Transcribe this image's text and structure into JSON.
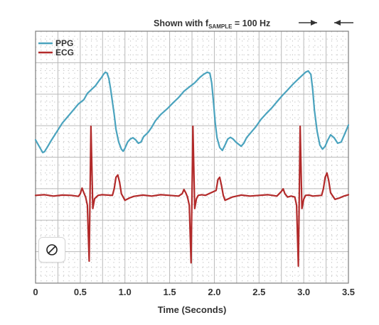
{
  "chart_data": {
    "type": "line",
    "title": "",
    "annotation": {
      "text_before": "Shown with f",
      "subscript": "SAMPLE",
      "text_after": " = 100 Hz"
    },
    "xlabel": "Time (Seconds)",
    "ylabel": "",
    "xlim": [
      0,
      3.5
    ],
    "xticks": [
      "0",
      "0.5",
      "1.0",
      "1.5",
      "2.0",
      "2.5",
      "3.0",
      "3.5"
    ],
    "grid": true,
    "legend_position": "top-left",
    "series": [
      {
        "name": "PPG",
        "color": "#4aa3be",
        "x": [
          0,
          0.04,
          0.08,
          0.1,
          0.13,
          0.18,
          0.24,
          0.3,
          0.36,
          0.42,
          0.48,
          0.54,
          0.58,
          0.63,
          0.67,
          0.71,
          0.74,
          0.76,
          0.78,
          0.8,
          0.82,
          0.84,
          0.86,
          0.88,
          0.9,
          0.93,
          0.96,
          0.98,
          1.0,
          1.03,
          1.06,
          1.09,
          1.12,
          1.15,
          1.18,
          1.21,
          1.26,
          1.3,
          1.34,
          1.4,
          1.48,
          1.54,
          1.6,
          1.66,
          1.72,
          1.78,
          1.84,
          1.88,
          1.92,
          1.95,
          1.97,
          1.99,
          2.01,
          2.03,
          2.06,
          2.09,
          2.12,
          2.15,
          2.18,
          2.21,
          2.24,
          2.27,
          2.3,
          2.33,
          2.36,
          2.4,
          2.46,
          2.52,
          2.58,
          2.64,
          2.7,
          2.76,
          2.82,
          2.88,
          2.93,
          2.98,
          3.02,
          3.05,
          3.08,
          3.1,
          3.12,
          3.15,
          3.18,
          3.21,
          3.24,
          3.27,
          3.3,
          3.34,
          3.38,
          3.42,
          3.46,
          3.5
        ],
        "y": [
          0.3,
          0.15,
          0.0,
          0.02,
          0.12,
          0.3,
          0.5,
          0.7,
          0.85,
          1.0,
          1.15,
          1.25,
          1.4,
          1.5,
          1.58,
          1.7,
          1.78,
          1.85,
          1.9,
          1.88,
          1.75,
          1.5,
          1.2,
          0.9,
          0.55,
          0.25,
          0.08,
          0.03,
          0.1,
          0.25,
          0.32,
          0.35,
          0.3,
          0.22,
          0.25,
          0.38,
          0.48,
          0.6,
          0.75,
          0.9,
          1.05,
          1.18,
          1.3,
          1.45,
          1.55,
          1.65,
          1.78,
          1.85,
          1.9,
          1.88,
          1.65,
          1.2,
          0.7,
          0.35,
          0.12,
          0.05,
          0.18,
          0.32,
          0.36,
          0.32,
          0.25,
          0.2,
          0.15,
          0.22,
          0.35,
          0.45,
          0.6,
          0.78,
          0.92,
          1.05,
          1.2,
          1.35,
          1.48,
          1.62,
          1.72,
          1.82,
          1.9,
          1.93,
          1.85,
          1.5,
          1.0,
          0.5,
          0.18,
          0.08,
          0.15,
          0.3,
          0.42,
          0.35,
          0.22,
          0.25,
          0.45,
          0.65
        ]
      },
      {
        "name": "ECG",
        "color": "#b22a2a",
        "x": [
          0,
          0.1,
          0.2,
          0.3,
          0.4,
          0.48,
          0.5,
          0.52,
          0.54,
          0.56,
          0.58,
          0.6,
          0.62,
          0.64,
          0.66,
          0.7,
          0.74,
          0.86,
          0.88,
          0.9,
          0.92,
          0.94,
          0.96,
          1.0,
          1.05,
          1.1,
          1.2,
          1.3,
          1.4,
          1.5,
          1.6,
          1.64,
          1.66,
          1.68,
          1.7,
          1.72,
          1.74,
          1.76,
          1.78,
          1.8,
          1.82,
          1.86,
          1.9,
          2.02,
          2.04,
          2.06,
          2.08,
          2.1,
          2.12,
          2.2,
          2.3,
          2.4,
          2.5,
          2.6,
          2.7,
          2.75,
          2.77,
          2.79,
          2.82,
          2.86,
          2.9,
          2.92,
          2.94,
          2.96,
          2.98,
          3.0,
          3.02,
          3.06,
          3.1,
          3.2,
          3.22,
          3.24,
          3.26,
          3.28,
          3.3,
          3.35,
          3.4,
          3.45,
          3.5
        ],
        "y": [
          0.0,
          0.02,
          -0.02,
          0.01,
          0.0,
          -0.03,
          0.05,
          0.22,
          0.08,
          -0.05,
          -0.3,
          -2.0,
          2.1,
          -0.4,
          -0.1,
          0.0,
          0.02,
          0.0,
          0.2,
          0.55,
          0.62,
          0.4,
          0.05,
          -0.15,
          -0.08,
          -0.03,
          0.01,
          -0.02,
          0.02,
          0.0,
          -0.02,
          0.05,
          0.18,
          0.08,
          -0.05,
          -0.3,
          -2.05,
          2.1,
          -0.4,
          -0.1,
          0.0,
          0.02,
          0.0,
          0.15,
          0.48,
          0.55,
          0.3,
          0.0,
          -0.15,
          -0.05,
          0.01,
          -0.02,
          0.0,
          0.02,
          -0.02,
          0.12,
          0.2,
          0.05,
          -0.05,
          -0.02,
          -0.05,
          -0.3,
          -2.15,
          2.1,
          -0.4,
          -0.12,
          0.0,
          0.01,
          -0.02,
          0.0,
          0.2,
          0.55,
          0.68,
          0.45,
          0.08,
          -0.12,
          -0.08,
          -0.02,
          0.02
        ]
      }
    ]
  }
}
